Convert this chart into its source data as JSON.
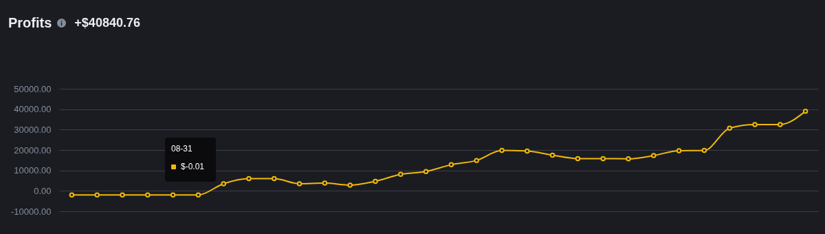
{
  "chart_data": {
    "type": "line",
    "title": "Profits",
    "subtitle": "+$40840.76",
    "annotations": [
      "08-31",
      "$-0.01"
    ],
    "categories": [
      null,
      null,
      null,
      null,
      null,
      null,
      null,
      null,
      null,
      null,
      null,
      null,
      null,
      null,
      null,
      null,
      null,
      null,
      null,
      null,
      null,
      null,
      null,
      null,
      null,
      null,
      null,
      null,
      null,
      null
    ],
    "series": [
      {
        "color": "#f0b90b",
        "values": [
          -2000,
          -2000,
          -2000,
          -2000,
          -2000,
          -2000,
          3500,
          6000,
          6000,
          3500,
          3800,
          2800,
          4700,
          8100,
          9500,
          12800,
          14900,
          19800,
          19500,
          17500,
          15800,
          15800,
          15700,
          17300,
          19700,
          19800,
          30700,
          32500,
          32500,
          39000
        ]
      }
    ],
    "ylim": [
      -10000,
      50000
    ],
    "yticks": [
      {
        "value": -10000,
        "label": "-10000.00"
      },
      {
        "value": 0,
        "label": "0.00"
      },
      {
        "value": 10000,
        "label": "10000.00"
      },
      {
        "value": 20000,
        "label": "20000.00"
      },
      {
        "value": 30000,
        "label": "30000.00"
      },
      {
        "value": 40000,
        "label": "40000.00"
      },
      {
        "value": 50000,
        "label": "50000.00"
      }
    ],
    "grid": "y",
    "marker": "circle",
    "line_style": "solid",
    "tick_labels": "y"
  }
}
